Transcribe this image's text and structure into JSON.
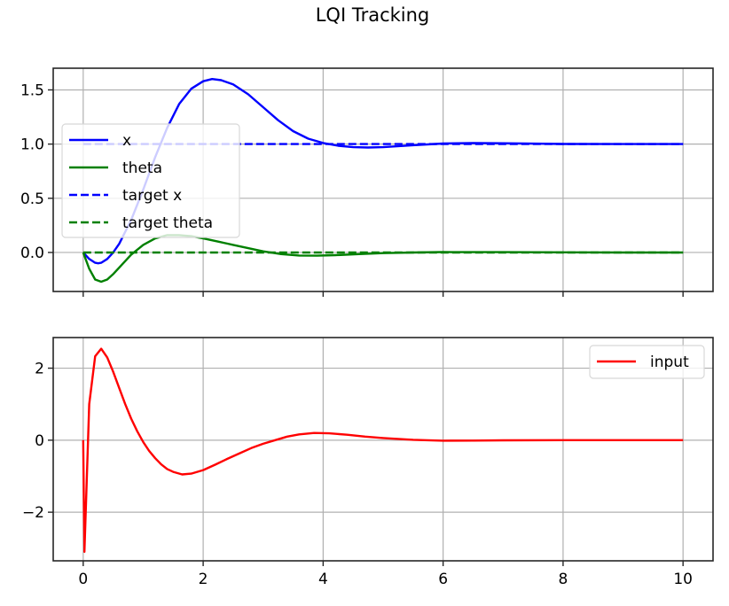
{
  "figure": {
    "title": "LQI Tracking"
  },
  "chart_data": [
    {
      "type": "line",
      "title": "",
      "xlabel": "",
      "ylabel": "",
      "xlim": [
        -0.5,
        10.5
      ],
      "ylim": [
        -0.36,
        1.7
      ],
      "xticks": [
        0,
        2,
        4,
        6,
        8,
        10
      ],
      "xtick_labels_visible": false,
      "yticks": [
        0.0,
        0.5,
        1.0,
        1.5
      ],
      "ytick_labels": [
        "0.0",
        "0.5",
        "1.0",
        "1.5"
      ],
      "grid": true,
      "legend_position": "center left",
      "series": [
        {
          "name": "x",
          "color": "#0000ff",
          "style": "solid",
          "x": [
            0,
            0.1,
            0.2,
            0.25,
            0.3,
            0.4,
            0.5,
            0.6,
            0.8,
            1.0,
            1.2,
            1.4,
            1.6,
            1.8,
            2.0,
            2.15,
            2.3,
            2.5,
            2.75,
            3.0,
            3.25,
            3.5,
            3.75,
            4.0,
            4.25,
            4.5,
            4.75,
            5.0,
            5.5,
            6.0,
            6.5,
            7.0,
            7.5,
            8.0,
            9.0,
            10.0
          ],
          "y": [
            0.0,
            -0.06,
            -0.095,
            -0.1,
            -0.095,
            -0.06,
            0.0,
            0.08,
            0.3,
            0.58,
            0.88,
            1.15,
            1.37,
            1.51,
            1.58,
            1.6,
            1.59,
            1.55,
            1.46,
            1.34,
            1.22,
            1.12,
            1.05,
            1.01,
            0.985,
            0.972,
            0.968,
            0.972,
            0.99,
            1.005,
            1.01,
            1.008,
            1.004,
            1.001,
            1.0,
            1.0
          ]
        },
        {
          "name": "theta",
          "color": "#008000",
          "style": "solid",
          "x": [
            0,
            0.1,
            0.2,
            0.3,
            0.4,
            0.5,
            0.6,
            0.7,
            0.8,
            1.0,
            1.2,
            1.4,
            1.6,
            1.8,
            2.0,
            2.25,
            2.5,
            2.75,
            3.0,
            3.3,
            3.6,
            3.9,
            4.2,
            4.6,
            5.0,
            5.5,
            6.0,
            7.0,
            8.0,
            9.0,
            10.0
          ],
          "y": [
            0.0,
            -0.15,
            -0.25,
            -0.27,
            -0.25,
            -0.2,
            -0.14,
            -0.08,
            -0.02,
            0.07,
            0.13,
            0.16,
            0.16,
            0.15,
            0.13,
            0.1,
            0.07,
            0.04,
            0.01,
            -0.015,
            -0.028,
            -0.03,
            -0.025,
            -0.015,
            -0.006,
            0.0,
            0.004,
            0.003,
            0.001,
            0.0,
            0.0
          ]
        },
        {
          "name": "target x",
          "color": "#0000ff",
          "style": "dashed",
          "x": [
            0,
            10
          ],
          "y": [
            1.0,
            1.0
          ]
        },
        {
          "name": "target theta",
          "color": "#008000",
          "style": "dashed",
          "x": [
            0,
            10
          ],
          "y": [
            0.0,
            0.0
          ]
        }
      ]
    },
    {
      "type": "line",
      "title": "",
      "xlabel": "",
      "ylabel": "",
      "xlim": [
        -0.5,
        10.5
      ],
      "ylim": [
        -3.35,
        2.85
      ],
      "xticks": [
        0,
        2,
        4,
        6,
        8,
        10
      ],
      "xtick_labels": [
        "0",
        "2",
        "4",
        "6",
        "8",
        "10"
      ],
      "yticks": [
        -2,
        0,
        2
      ],
      "ytick_labels": [
        "−2",
        "0",
        "2"
      ],
      "grid": true,
      "legend_position": "upper right",
      "series": [
        {
          "name": "input",
          "color": "#ff0000",
          "style": "solid",
          "x": [
            0,
            0.0001,
            0.02,
            0.1,
            0.2,
            0.3,
            0.4,
            0.5,
            0.6,
            0.7,
            0.8,
            0.9,
            1.0,
            1.1,
            1.2,
            1.3,
            1.4,
            1.5,
            1.65,
            1.8,
            2.0,
            2.2,
            2.4,
            2.6,
            2.8,
            3.0,
            3.2,
            3.4,
            3.6,
            3.85,
            4.1,
            4.4,
            4.7,
            5.0,
            5.5,
            6.0,
            6.5,
            7.0,
            8.0,
            9.0,
            10.0
          ],
          "y": [
            0.0,
            0.0,
            -3.1,
            1.0,
            2.33,
            2.54,
            2.3,
            1.9,
            1.45,
            1.0,
            0.6,
            0.25,
            -0.05,
            -0.3,
            -0.5,
            -0.67,
            -0.8,
            -0.88,
            -0.95,
            -0.93,
            -0.83,
            -0.68,
            -0.52,
            -0.37,
            -0.22,
            -0.1,
            0.0,
            0.1,
            0.16,
            0.2,
            0.19,
            0.15,
            0.1,
            0.06,
            0.01,
            -0.015,
            -0.012,
            -0.005,
            0.002,
            0.0,
            0.0
          ]
        }
      ]
    }
  ]
}
